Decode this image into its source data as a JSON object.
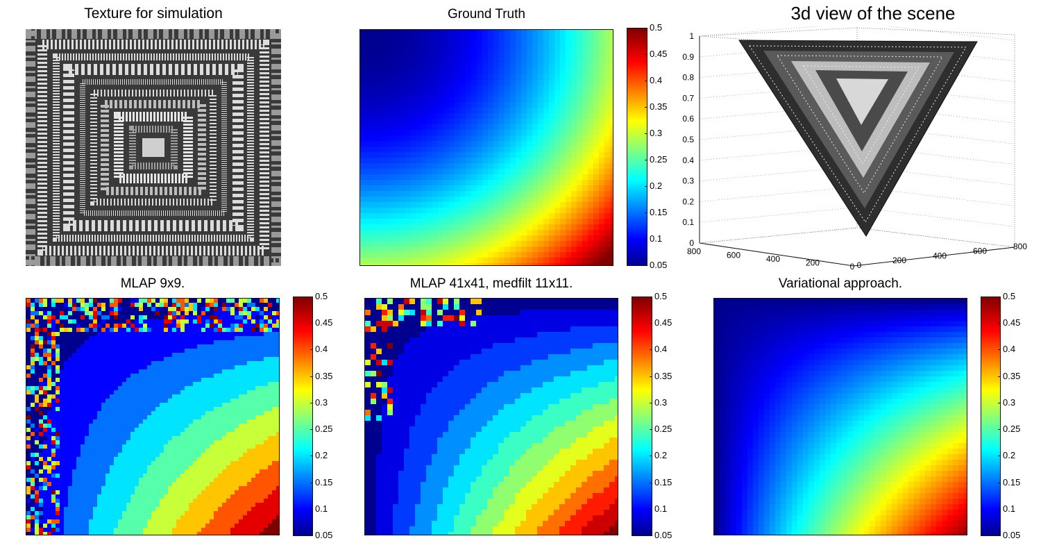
{
  "figure": {
    "panels": [
      {
        "id": "texture",
        "title": "Texture for simulation"
      },
      {
        "id": "ground_truth",
        "title": "Ground Truth"
      },
      {
        "id": "view3d",
        "title": "3d view of the scene"
      },
      {
        "id": "mlap9",
        "title": "MLAP 9x9."
      },
      {
        "id": "mlap41",
        "title": "MLAP 41x41, medfilt 11x11."
      },
      {
        "id": "variational",
        "title": "Variational approach."
      }
    ]
  },
  "colorbar": {
    "ticks": [
      "0.5",
      "0.45",
      "0.4",
      "0.35",
      "0.3",
      "0.25",
      "0.2",
      "0.15",
      "0.1",
      "0.05"
    ],
    "colors": [
      "#00008f",
      "#0000ff",
      "#00ffff",
      "#ffff00",
      "#ff0000",
      "#800000"
    ]
  },
  "chart_data": [
    {
      "type": "heatmap",
      "title": "Texture for simulation",
      "content": "grayscale texture of nested square borders"
    },
    {
      "type": "heatmap",
      "title": "Ground Truth",
      "clim": [
        0.05,
        0.5
      ],
      "colormap": "jet",
      "pattern": "radial increase from top-left to bottom-right"
    },
    {
      "type": "surface",
      "title": "3d view of the scene",
      "z_ticks": [
        "0",
        "0.1",
        "0.2",
        "0.3",
        "0.4",
        "0.5",
        "0.6",
        "0.7",
        "0.8",
        "0.9",
        "1"
      ],
      "x_ticks": [
        "0",
        "200",
        "400",
        "600",
        "800"
      ],
      "y_ticks": [
        "800",
        "600",
        "400",
        "200",
        "0"
      ]
    },
    {
      "type": "heatmap",
      "title": "MLAP 9x9.",
      "clim": [
        0.05,
        0.5
      ],
      "colormap": "jet",
      "noise": "high along top and left edges"
    },
    {
      "type": "heatmap",
      "title": "MLAP 41x41, medfilt 11x11.",
      "clim": [
        0.05,
        0.5
      ],
      "colormap": "jet",
      "noise": "blobs in top-left corner"
    },
    {
      "type": "heatmap",
      "title": "Variational approach.",
      "clim": [
        0.05,
        0.5
      ],
      "colormap": "jet",
      "noise": "none"
    }
  ]
}
